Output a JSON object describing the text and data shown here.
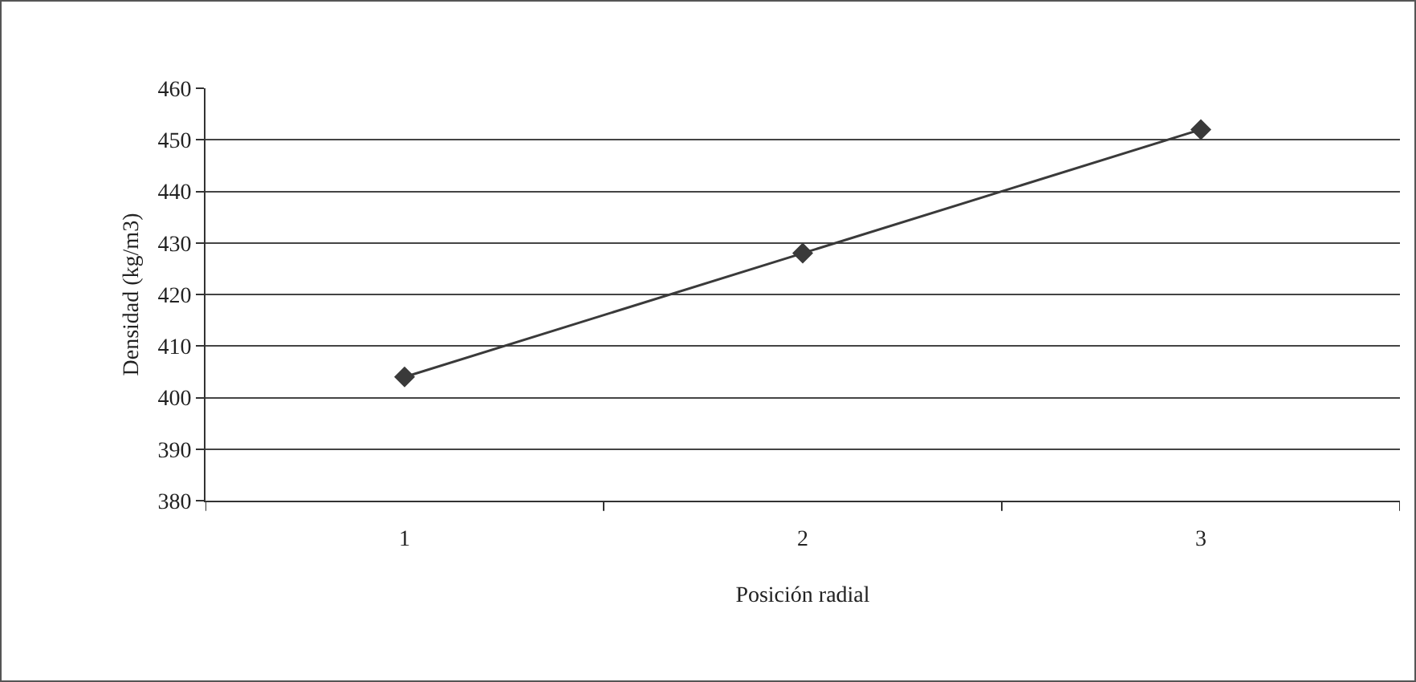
{
  "chart_data": {
    "type": "line",
    "xlabel": "Posición radial",
    "ylabel": "Densidad (kg/m3)",
    "categories": [
      "1",
      "2",
      "3"
    ],
    "series": [
      {
        "color": "#3a3a3a",
        "values": [
          404,
          428,
          452
        ]
      }
    ],
    "ylim": [
      380,
      460
    ],
    "yticks": [
      380,
      390,
      400,
      410,
      420,
      430,
      440,
      450,
      460
    ],
    "grid": "y",
    "legend": false,
    "marker": "diamond",
    "line_style": "solid"
  }
}
